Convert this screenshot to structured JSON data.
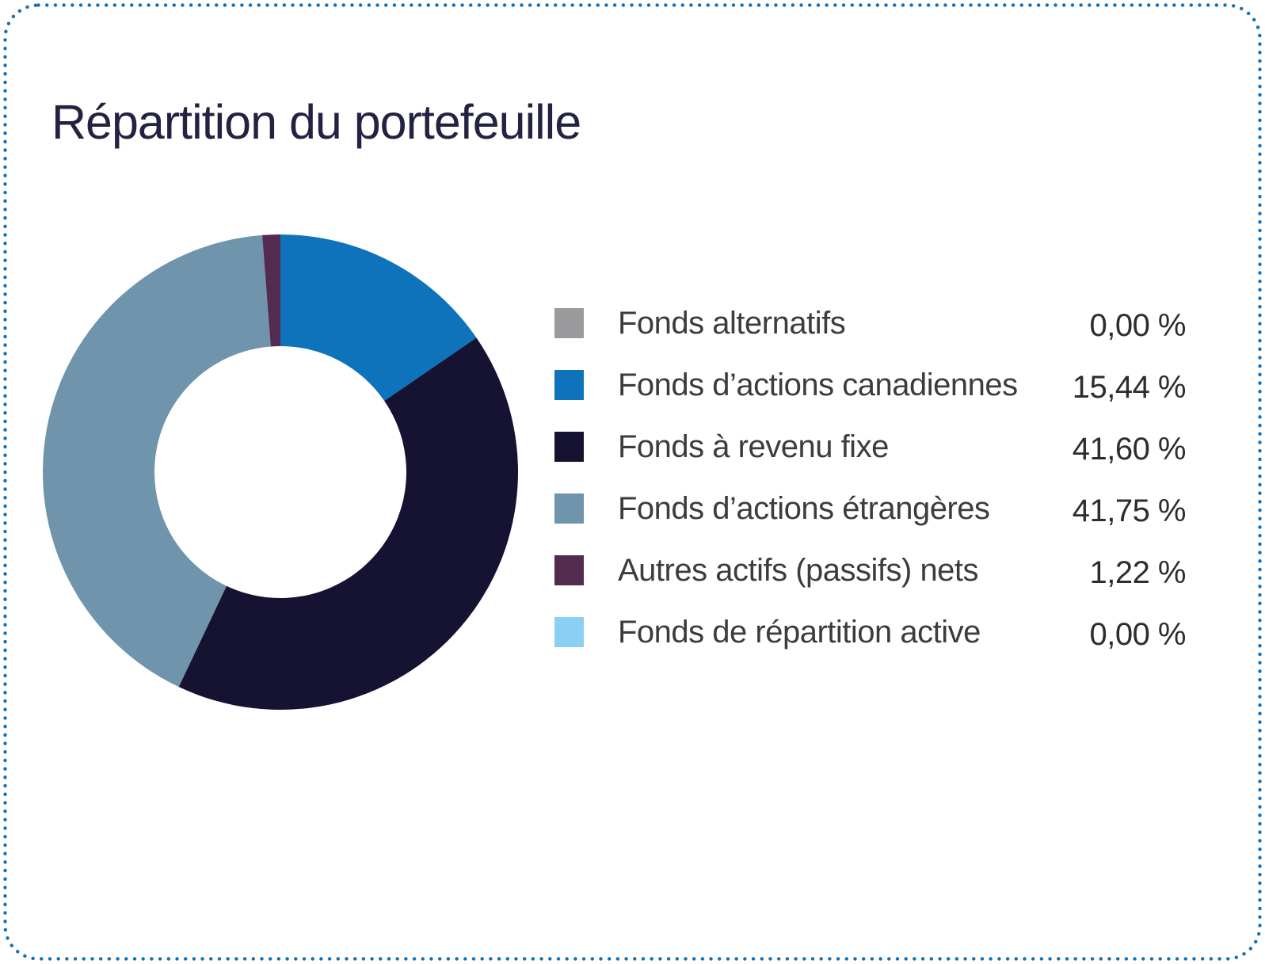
{
  "header": {
    "title": "Répartition du portefeuille"
  },
  "colors": {
    "border_dots": "#1371b8",
    "title_text": "#232241",
    "legend_label_text": "#3c3c3c",
    "legend_value_text": "#2d2d2d",
    "background": "#ffffff"
  },
  "chart_data": {
    "type": "pie",
    "subtype": "donut",
    "title": "Répartition du portefeuille",
    "legend_position": "right",
    "start_angle_deg": 0,
    "direction": "clockwise",
    "inner_radius_ratio": 0.53,
    "series": [
      {
        "label": "Fonds alternatifs",
        "value_pct": 0.0,
        "display_value": "0,00 %",
        "color": "#9b9b9d"
      },
      {
        "label": "Fonds d’actions canadiennes",
        "value_pct": 15.44,
        "display_value": "15,44 %",
        "color": "#0e73bb"
      },
      {
        "label": "Fonds à revenu fixe",
        "value_pct": 41.6,
        "display_value": "41,60 %",
        "color": "#151331"
      },
      {
        "label": "Fonds d’actions étrangères",
        "value_pct": 41.75,
        "display_value": "41,75 %",
        "color": "#7094ab"
      },
      {
        "label": "Autres actifs (passifs) nets",
        "value_pct": 1.22,
        "display_value": "1,22 %",
        "color": "#532b4e"
      },
      {
        "label": "Fonds de répartition active",
        "value_pct": 0.0,
        "display_value": "0,00 %",
        "color": "#8bd0f4"
      }
    ]
  }
}
